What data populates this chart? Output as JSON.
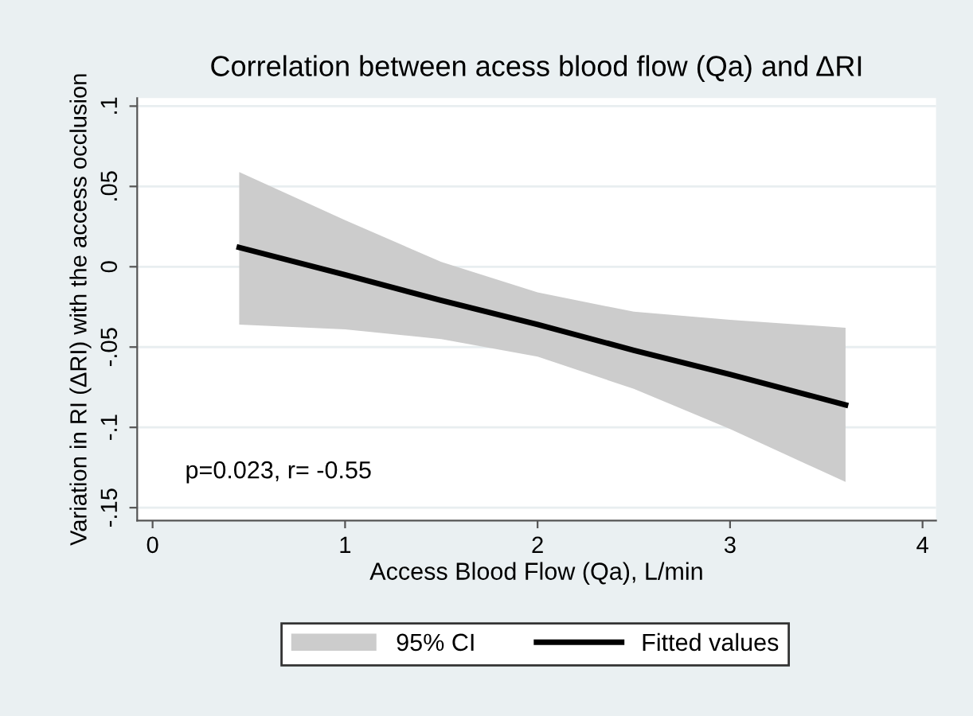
{
  "chart_data": {
    "type": "line",
    "title": "Correlation between acess blood flow (Qa) and ΔRI",
    "xlabel": "Access Blood Flow (Qa), L/min",
    "ylabel": "Variation in RI (ΔRI) with the access occlusion",
    "x": [
      0.45,
      1,
      1.5,
      2,
      2.5,
      3,
      3.6
    ],
    "series": [
      {
        "name": "Fitted values",
        "type": "line",
        "color": "#000000",
        "values": [
          0.012,
          -0.005,
          -0.021,
          -0.036,
          -0.052,
          -0.067,
          -0.086
        ],
        "lower": [
          -0.036,
          -0.039,
          -0.045,
          -0.056,
          -0.076,
          -0.101,
          -0.134
        ],
        "upper": [
          0.059,
          0.029,
          0.003,
          -0.016,
          -0.028,
          -0.033,
          -0.038
        ]
      }
    ],
    "xlim": [
      -0.08,
      4.07
    ],
    "ylim": [
      -0.158,
      0.105
    ],
    "xticks": [
      0,
      1,
      2,
      3,
      4
    ],
    "yticks": [
      {
        "value": -0.15,
        "label": "-.15"
      },
      {
        "value": -0.1,
        "label": "-.1"
      },
      {
        "value": -0.05,
        "label": "-.05"
      },
      {
        "value": 0,
        "label": "0"
      },
      {
        "value": 0.05,
        "label": ".05"
      },
      {
        "value": 0.1,
        "label": ".1"
      }
    ],
    "grid": "y",
    "legend": "bottom",
    "marker": "none",
    "line_style": "solid",
    "annotations": [
      "p=0.023, r= -0.55",
      "95% CI"
    ]
  }
}
